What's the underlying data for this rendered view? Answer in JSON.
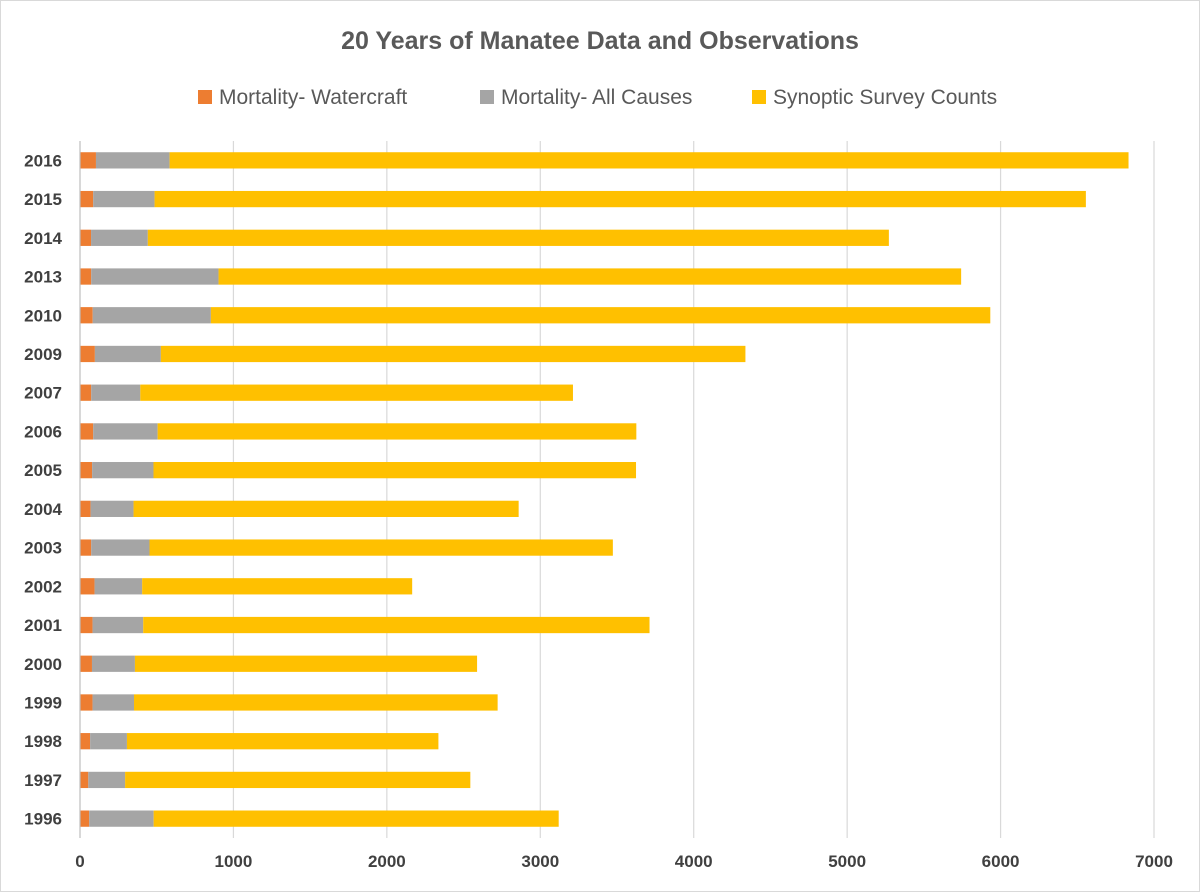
{
  "chart_data": {
    "type": "bar",
    "orientation": "horizontal",
    "stacked": true,
    "title": "20 Years of Manatee Data and Observations",
    "xlabel": "",
    "ylabel": "",
    "xlim": [
      0,
      7000
    ],
    "xticks": [
      "0",
      "1000",
      "2000",
      "3000",
      "4000",
      "5000",
      "6000",
      "7000"
    ],
    "grid": true,
    "legend_position": "top",
    "categories": [
      "2016",
      "2015",
      "2014",
      "2013",
      "2010",
      "2009",
      "2007",
      "2006",
      "2005",
      "2004",
      "2003",
      "2002",
      "2001",
      "2000",
      "1999",
      "1998",
      "1997",
      "1996"
    ],
    "series": [
      {
        "name": "Mortality- Watercraft",
        "color": "#ed7d31",
        "values": [
          104,
          86,
          72,
          73,
          83,
          97,
          73,
          86,
          79,
          69,
          73,
          95,
          82,
          78,
          82,
          66,
          54,
          60
        ]
      },
      {
        "name": "Mortality- All Causes",
        "color": "#a5a5a5",
        "values": [
          480,
          400,
          370,
          830,
          770,
          430,
          320,
          420,
          400,
          280,
          380,
          310,
          330,
          280,
          270,
          240,
          240,
          420
        ]
      },
      {
        "name": "Synoptic Survey Counts",
        "color": "#ffc000",
        "values": [
          6250,
          6070,
          4830,
          4840,
          5080,
          3810,
          2820,
          3120,
          3145,
          2510,
          3020,
          1760,
          3300,
          2230,
          2370,
          2030,
          2250,
          2640
        ]
      }
    ]
  }
}
